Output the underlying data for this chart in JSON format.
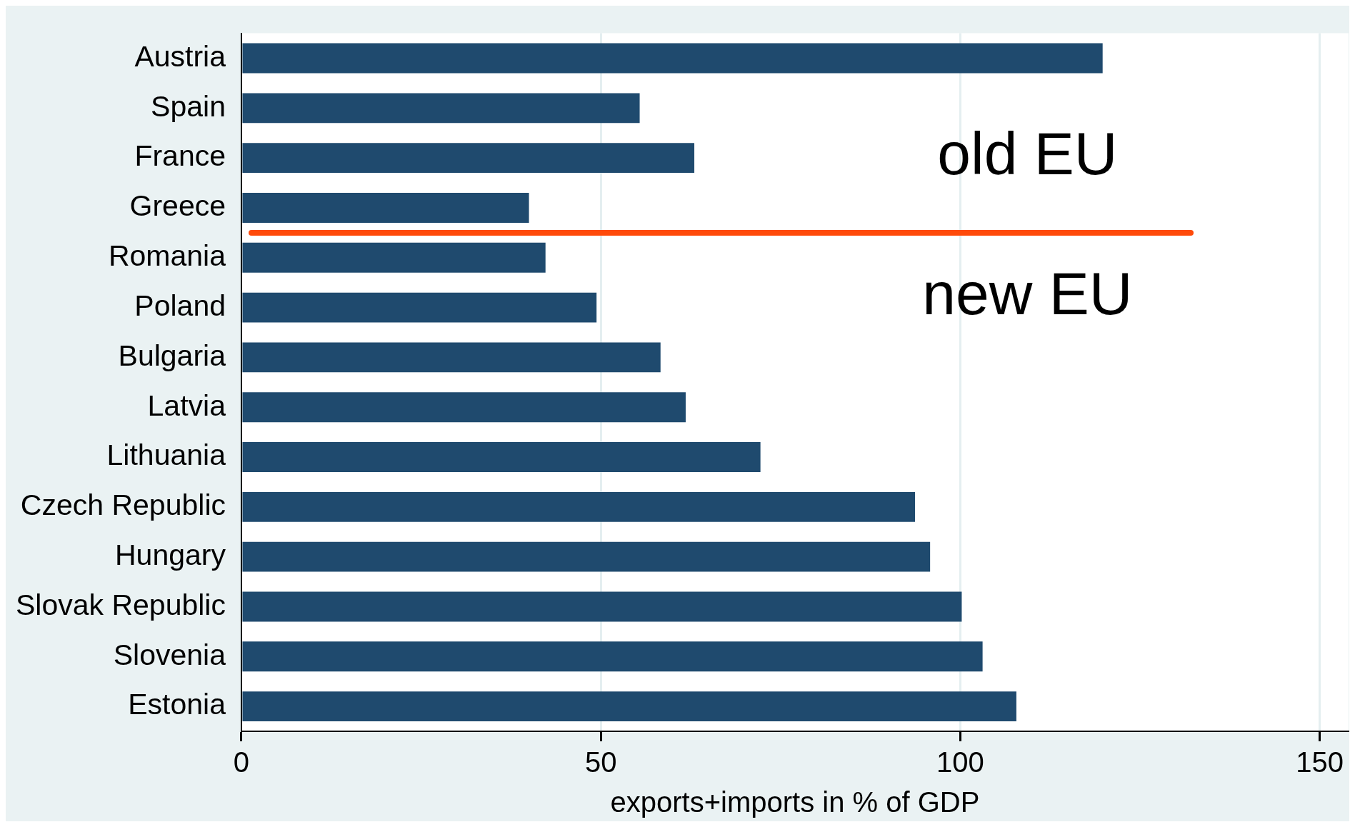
{
  "chart_data": {
    "type": "bar",
    "orientation": "horizontal",
    "xlabel": "exports+imports in % of GDP",
    "categories": [
      "Austria",
      "Spain",
      "France",
      "Greece",
      "Romania",
      "Poland",
      "Bulgaria",
      "Latvia",
      "Lithuania",
      "Czech Republic",
      "Hungary",
      "Slovak Republic",
      "Slovenia",
      "Estonia"
    ],
    "values": [
      119.8,
      55.4,
      63,
      40,
      42.3,
      49.4,
      58.3,
      61.8,
      72.2,
      93.7,
      95.8,
      100.2,
      103.1,
      107.8
    ],
    "color": "#1f4a6e",
    "xlim": [
      0,
      154
    ],
    "xticks": [
      0,
      50,
      100,
      150
    ],
    "grid": "x",
    "annotations": [
      "old EU",
      "new EU"
    ]
  }
}
